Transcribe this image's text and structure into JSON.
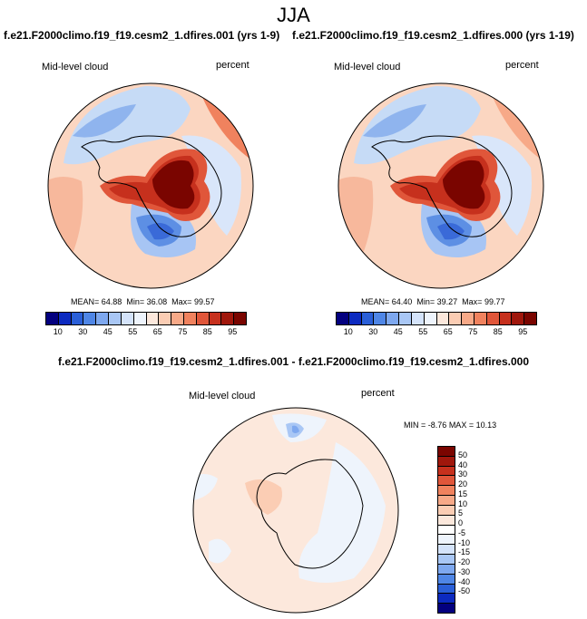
{
  "season": "JJA",
  "panels": [
    {
      "case_title": "f.e21.F2000climo.f19_f19.cesm2_1.dfires.001 (yrs 1-9)",
      "variable": "Mid-level cloud",
      "units": "percent",
      "mean_label": "MEAN=",
      "mean": "64.88",
      "min_label": "Min=",
      "min": "36.08",
      "max_label": "Max=",
      "max": "99.57"
    },
    {
      "case_title": "f.e21.F2000climo.f19_f19.cesm2_1.dfires.000 (yrs 1-19)",
      "variable": "Mid-level cloud",
      "units": "percent",
      "mean_label": "MEAN=",
      "mean": "64.40",
      "min_label": "Min=",
      "min": "39.27",
      "max_label": "Max=",
      "max": "99.77"
    }
  ],
  "abs_colorbar": {
    "colors": [
      "#03007f",
      "#0c2ac0",
      "#2a5fd8",
      "#4f86e6",
      "#7ea8ef",
      "#a9c7f5",
      "#d4e3fa",
      "#eef4fc",
      "#fce8dc",
      "#fbcdb4",
      "#f7a988",
      "#f0825e",
      "#e0563a",
      "#c6301d",
      "#a0170c",
      "#7a0500"
    ],
    "tick_labels": [
      "10",
      "30",
      "45",
      "55",
      "65",
      "75",
      "85",
      "95"
    ]
  },
  "diff": {
    "title": "f.e21.F2000climo.f19_f19.cesm2_1.dfires.001 - f.e21.F2000climo.f19_f19.cesm2_1.dfires.000",
    "variable": "Mid-level cloud",
    "units": "percent",
    "min_label": "MIN =",
    "min": "-8.76",
    "max_label": "MAX =",
    "max": "10.13"
  },
  "diff_colorbar": {
    "colors": [
      "#7a0500",
      "#a0170c",
      "#c6301d",
      "#e0563a",
      "#f0825e",
      "#f7a988",
      "#fbcdb4",
      "#fce8dc",
      "#ffffff",
      "#eef4fc",
      "#d4e3fa",
      "#a9c7f5",
      "#7ea8ef",
      "#4f86e6",
      "#2a5fd8",
      "#0c2ac0",
      "#03007f"
    ],
    "tick_labels": [
      "50",
      "40",
      "30",
      "20",
      "15",
      "10",
      "5",
      "0",
      "-5",
      "-10",
      "-15",
      "-20",
      "-30",
      "-40",
      "-50"
    ]
  }
}
